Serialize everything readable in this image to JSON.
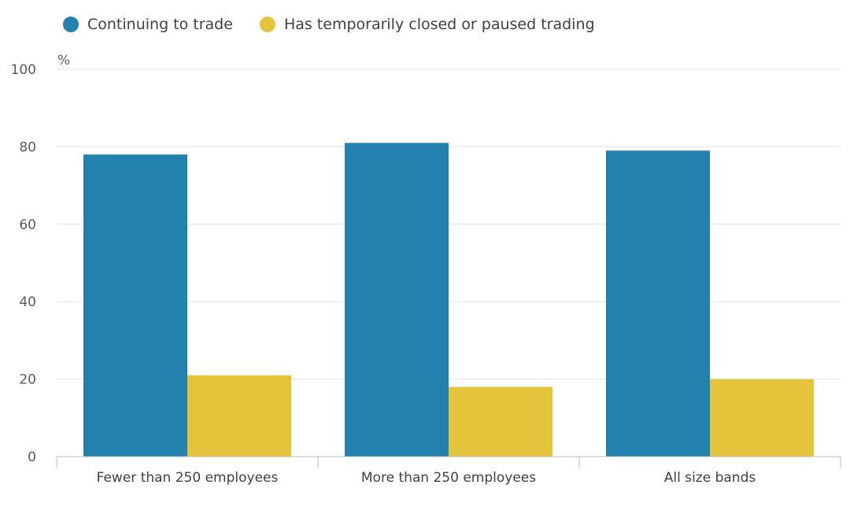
{
  "chart_data": {
    "type": "bar",
    "ylabel": "%",
    "ylim": [
      0,
      100
    ],
    "yticks": [
      0,
      20,
      40,
      60,
      80,
      100
    ],
    "grid": true,
    "legend_position": "top-left",
    "categories": [
      "Fewer than 250 employees",
      "More than 250 employees",
      "All size bands"
    ],
    "series": [
      {
        "name": "Continuing to trade",
        "color": "#2281ad",
        "values": [
          78,
          81,
          79
        ]
      },
      {
        "name": "Has temporarily closed or paused trading",
        "color": "#e3c43b",
        "values": [
          21,
          18,
          20
        ]
      }
    ]
  }
}
